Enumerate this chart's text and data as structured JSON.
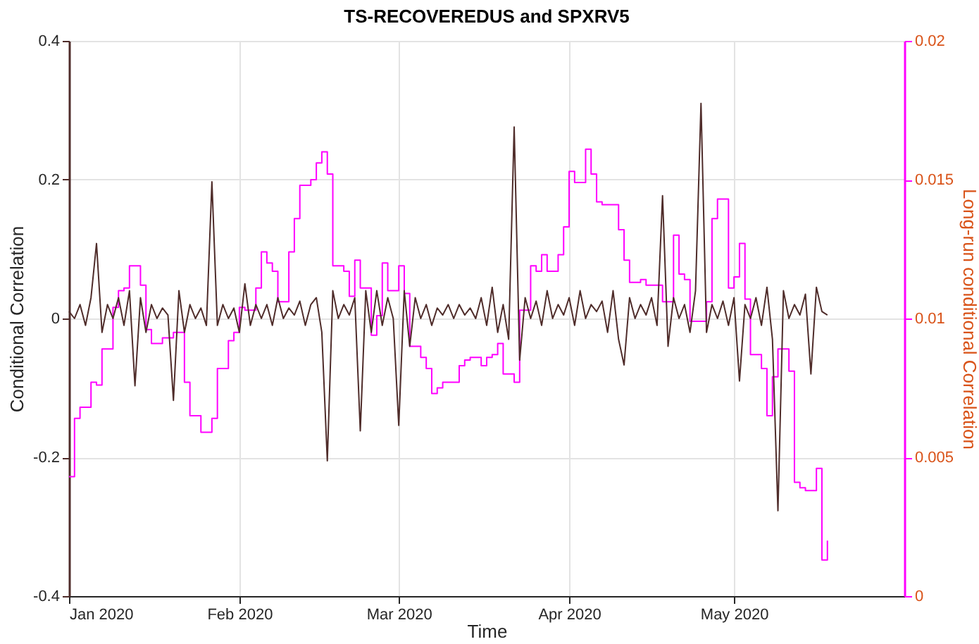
{
  "chart_data": {
    "type": "line",
    "title": "TS-RECOVEREDUS and SPXRV5",
    "xlabel": "Time",
    "ylabel": "Conditional Correlation",
    "y2label": "Long-run conditional Correlation",
    "xlim": [
      "2020-01-01",
      "2020-06-01"
    ],
    "xticks": [
      {
        "value": "2020-01-01",
        "label": "Jan 2020"
      },
      {
        "value": "2020-02-01",
        "label": "Feb 2020"
      },
      {
        "value": "2020-03-01",
        "label": "Mar 2020"
      },
      {
        "value": "2020-04-01",
        "label": "Apr 2020"
      },
      {
        "value": "2020-05-01",
        "label": "May 2020"
      }
    ],
    "ylim": [
      -0.4,
      0.4
    ],
    "yticks": [
      -0.4,
      -0.2,
      0,
      0.2,
      0.4
    ],
    "y2lim": [
      0,
      0.02
    ],
    "y2ticks": [
      0,
      0.005,
      0.01,
      0.015,
      0.02
    ],
    "grid": true,
    "legend": false,
    "x": [
      "2020-01-01",
      "2020-01-02",
      "2020-01-03",
      "2020-01-04",
      "2020-01-05",
      "2020-01-06",
      "2020-01-07",
      "2020-01-08",
      "2020-01-09",
      "2020-01-10",
      "2020-01-11",
      "2020-01-12",
      "2020-01-13",
      "2020-01-14",
      "2020-01-15",
      "2020-01-16",
      "2020-01-17",
      "2020-01-18",
      "2020-01-19",
      "2020-01-20",
      "2020-01-21",
      "2020-01-22",
      "2020-01-23",
      "2020-01-24",
      "2020-01-25",
      "2020-01-26",
      "2020-01-27",
      "2020-01-28",
      "2020-01-29",
      "2020-01-30",
      "2020-01-31",
      "2020-02-01",
      "2020-02-02",
      "2020-02-03",
      "2020-02-04",
      "2020-02-05",
      "2020-02-06",
      "2020-02-07",
      "2020-02-08",
      "2020-02-09",
      "2020-02-10",
      "2020-02-11",
      "2020-02-12",
      "2020-02-13",
      "2020-02-14",
      "2020-02-15",
      "2020-02-16",
      "2020-02-17",
      "2020-02-18",
      "2020-02-19",
      "2020-02-20",
      "2020-02-21",
      "2020-02-22",
      "2020-02-23",
      "2020-02-24",
      "2020-02-25",
      "2020-02-26",
      "2020-02-27",
      "2020-02-28",
      "2020-02-29",
      "2020-03-01",
      "2020-03-02",
      "2020-03-03",
      "2020-03-04",
      "2020-03-05",
      "2020-03-06",
      "2020-03-07",
      "2020-03-08",
      "2020-03-09",
      "2020-03-10",
      "2020-03-11",
      "2020-03-12",
      "2020-03-13",
      "2020-03-14",
      "2020-03-15",
      "2020-03-16",
      "2020-03-17",
      "2020-03-18",
      "2020-03-19",
      "2020-03-20",
      "2020-03-21",
      "2020-03-22",
      "2020-03-23",
      "2020-03-24",
      "2020-03-25",
      "2020-03-26",
      "2020-03-27",
      "2020-03-28",
      "2020-03-29",
      "2020-03-30",
      "2020-03-31",
      "2020-04-01",
      "2020-04-02",
      "2020-04-03",
      "2020-04-04",
      "2020-04-05",
      "2020-04-06",
      "2020-04-07",
      "2020-04-08",
      "2020-04-09",
      "2020-04-10",
      "2020-04-11",
      "2020-04-12",
      "2020-04-13",
      "2020-04-14",
      "2020-04-15",
      "2020-04-16",
      "2020-04-17",
      "2020-04-18",
      "2020-04-19",
      "2020-04-20",
      "2020-04-21",
      "2020-04-22",
      "2020-04-23",
      "2020-04-24",
      "2020-04-25",
      "2020-04-26",
      "2020-04-27",
      "2020-04-28",
      "2020-04-29",
      "2020-04-30",
      "2020-05-01",
      "2020-05-02",
      "2020-05-03",
      "2020-05-04",
      "2020-05-05",
      "2020-05-06",
      "2020-05-07",
      "2020-05-08",
      "2020-05-09",
      "2020-05-10",
      "2020-05-11",
      "2020-05-12",
      "2020-05-13",
      "2020-05-14",
      "2020-05-15",
      "2020-05-16",
      "2020-05-17",
      "2020-05-18"
    ],
    "series": [
      {
        "type": "line",
        "color": "#4f2c2a",
        "values": [
          0.01,
          0.0,
          0.02,
          -0.01,
          0.03,
          0.108,
          -0.02,
          0.02,
          0.0,
          0.03,
          -0.01,
          0.04,
          -0.097,
          0.03,
          -0.02,
          0.02,
          0.0,
          0.015,
          0.005,
          -0.118,
          0.04,
          -0.02,
          0.02,
          0.0,
          0.015,
          -0.01,
          0.197,
          -0.01,
          0.02,
          0.0,
          0.015,
          -0.02,
          0.05,
          -0.01,
          0.02,
          0.0,
          0.02,
          -0.01,
          0.03,
          0.0,
          0.015,
          0.005,
          0.025,
          -0.01,
          0.02,
          0.03,
          -0.02,
          -0.205,
          0.04,
          0.0,
          0.02,
          0.005,
          0.03,
          -0.162,
          0.04,
          -0.02,
          0.04,
          -0.01,
          0.03,
          0.0,
          -0.154,
          0.04,
          -0.04,
          0.03,
          0.0,
          0.02,
          -0.01,
          0.015,
          0.005,
          0.02,
          0.0,
          0.02,
          0.005,
          0.015,
          0.0,
          0.03,
          -0.01,
          0.045,
          -0.02,
          0.02,
          -0.03,
          0.276,
          -0.06,
          0.03,
          0.0,
          0.025,
          -0.01,
          0.04,
          0.0,
          0.02,
          0.005,
          0.03,
          -0.01,
          0.04,
          0.0,
          0.02,
          0.01,
          0.025,
          -0.02,
          0.04,
          -0.03,
          -0.067,
          0.03,
          0.0,
          0.02,
          0.005,
          0.03,
          -0.01,
          0.177,
          -0.04,
          0.03,
          0.0,
          0.02,
          -0.02,
          0.04,
          0.31,
          -0.02,
          0.02,
          0.0,
          0.025,
          -0.01,
          0.03,
          -0.09,
          0.02,
          0.0,
          0.03,
          -0.01,
          0.045,
          -0.03,
          -0.277,
          0.04,
          0.0,
          0.02,
          0.005,
          0.035,
          -0.08,
          0.045,
          0.01,
          0.005
        ]
      },
      {
        "type": "step",
        "axis": "y2",
        "color": "#ff00ff",
        "x": [
          "2020-01-01",
          "2020-01-02",
          "2020-01-03",
          "2020-01-05",
          "2020-01-06",
          "2020-01-07",
          "2020-01-09",
          "2020-01-10",
          "2020-01-11",
          "2020-01-12",
          "2020-01-14",
          "2020-01-15",
          "2020-01-16",
          "2020-01-18",
          "2020-01-20",
          "2020-01-22",
          "2020-01-23",
          "2020-01-25",
          "2020-01-27",
          "2020-01-28",
          "2020-01-30",
          "2020-01-31",
          "2020-02-01",
          "2020-02-02",
          "2020-02-04",
          "2020-02-05",
          "2020-02-06",
          "2020-02-07",
          "2020-02-08",
          "2020-02-10",
          "2020-02-11",
          "2020-02-12",
          "2020-02-14",
          "2020-02-15",
          "2020-02-16",
          "2020-02-17",
          "2020-02-18",
          "2020-02-20",
          "2020-02-21",
          "2020-02-22",
          "2020-02-23",
          "2020-02-25",
          "2020-02-26",
          "2020-02-27",
          "2020-02-28",
          "2020-03-01",
          "2020-03-02",
          "2020-03-03",
          "2020-03-05",
          "2020-03-06",
          "2020-03-07",
          "2020-03-08",
          "2020-03-09",
          "2020-03-12",
          "2020-03-13",
          "2020-03-14",
          "2020-03-16",
          "2020-03-17",
          "2020-03-18",
          "2020-03-19",
          "2020-03-20",
          "2020-03-22",
          "2020-03-23",
          "2020-03-25",
          "2020-03-26",
          "2020-03-27",
          "2020-03-28",
          "2020-03-30",
          "2020-03-31",
          "2020-04-01",
          "2020-04-02",
          "2020-04-04",
          "2020-04-05",
          "2020-04-06",
          "2020-04-07",
          "2020-04-10",
          "2020-04-11",
          "2020-04-12",
          "2020-04-14",
          "2020-04-15",
          "2020-04-17",
          "2020-04-18",
          "2020-04-20",
          "2020-04-21",
          "2020-04-22",
          "2020-04-23",
          "2020-04-26",
          "2020-04-27",
          "2020-04-28",
          "2020-04-30",
          "2020-05-01",
          "2020-05-02",
          "2020-05-03",
          "2020-05-04",
          "2020-05-06",
          "2020-05-07",
          "2020-05-08",
          "2020-05-09",
          "2020-05-11",
          "2020-05-12",
          "2020-05-13",
          "2020-05-14",
          "2020-05-16",
          "2020-05-17",
          "2020-05-18"
        ],
        "values": [
          0.0043,
          0.0064,
          0.0068,
          0.0077,
          0.0076,
          0.0089,
          0.0104,
          0.011,
          0.0111,
          0.0119,
          0.0112,
          0.0096,
          0.0091,
          0.0093,
          0.0095,
          0.0077,
          0.0065,
          0.0059,
          0.0064,
          0.0082,
          0.0092,
          0.0095,
          0.0104,
          0.0103,
          0.0111,
          0.0124,
          0.012,
          0.0117,
          0.0106,
          0.0124,
          0.0136,
          0.0148,
          0.015,
          0.0156,
          0.016,
          0.0152,
          0.0119,
          0.0117,
          0.0108,
          0.0121,
          0.0111,
          0.0094,
          0.0101,
          0.012,
          0.011,
          0.0119,
          0.0109,
          0.009,
          0.0086,
          0.0082,
          0.0073,
          0.0075,
          0.0077,
          0.0083,
          0.0085,
          0.0086,
          0.0083,
          0.0086,
          0.0087,
          0.0091,
          0.008,
          0.0077,
          0.0103,
          0.0119,
          0.0117,
          0.0123,
          0.0117,
          0.0123,
          0.0133,
          0.0153,
          0.0149,
          0.0161,
          0.0152,
          0.0142,
          0.0141,
          0.0132,
          0.0121,
          0.0113,
          0.0114,
          0.0112,
          0.0112,
          0.0106,
          0.013,
          0.0116,
          0.0114,
          0.0099,
          0.0106,
          0.0136,
          0.0143,
          0.0111,
          0.0115,
          0.0127,
          0.0107,
          0.0087,
          0.0082,
          0.0065,
          0.0079,
          0.0089,
          0.0081,
          0.0041,
          0.0039,
          0.0038,
          0.0046,
          0.0013,
          0.002
        ]
      }
    ]
  }
}
